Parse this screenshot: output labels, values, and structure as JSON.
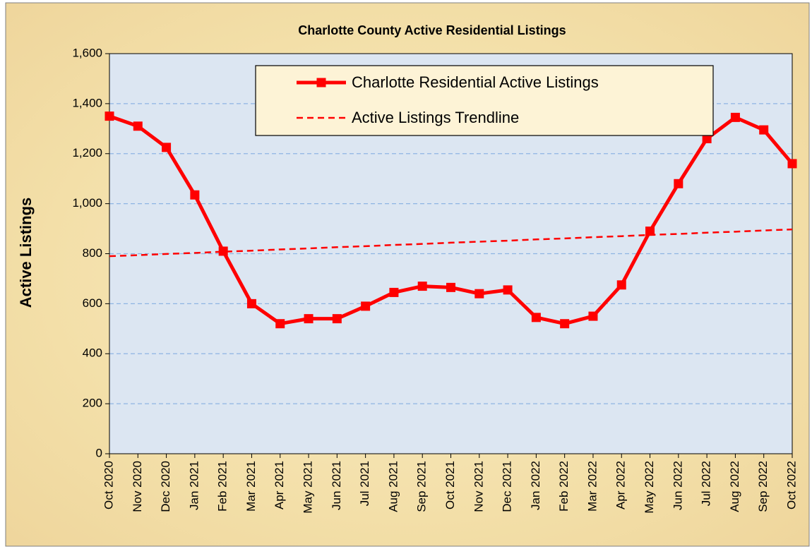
{
  "chart_data": {
    "type": "line",
    "title": "Charlotte County Active Residential Listings",
    "y_label": "Active Listings",
    "categories": [
      "Oct 2020",
      "Nov 2020",
      "Dec 2020",
      "Jan 2021",
      "Feb 2021",
      "Mar 2021",
      "Apr 2021",
      "May 2021",
      "Jun 2021",
      "Jul 2021",
      "Aug 2021",
      "Sep 2021",
      "Oct 2021",
      "Nov 2021",
      "Dec 2021",
      "Jan 2022",
      "Feb 2022",
      "Mar 2022",
      "Apr 2022",
      "May 2022",
      "Jun 2022",
      "Jul 2022",
      "Aug 2022",
      "Sep 2022",
      "Oct 2022"
    ],
    "series": [
      {
        "name": "Charlotte Residential Active Listings",
        "color": "#ff0000",
        "style": "solid-markers",
        "values": [
          1350,
          1310,
          1225,
          1035,
          810,
          600,
          520,
          540,
          540,
          590,
          645,
          670,
          665,
          640,
          655,
          545,
          520,
          550,
          675,
          890,
          1080,
          1260,
          1345,
          1295,
          1160
        ]
      },
      {
        "name": "Active Listings Trendline",
        "color": "#ff0000",
        "style": "dashed",
        "values": [
          790,
          794,
          799,
          803,
          808,
          812,
          817,
          821,
          826,
          830,
          835,
          839,
          844,
          848,
          852,
          857,
          861,
          866,
          870,
          875,
          879,
          884,
          888,
          893,
          897
        ]
      }
    ],
    "ylim": [
      0,
      1600
    ],
    "yticks": [
      0,
      200,
      400,
      600,
      800,
      {
        "value": 1000,
        "label": "1,000"
      },
      {
        "value": 1200,
        "label": "1,200"
      },
      {
        "value": 1400,
        "label": "1,400"
      },
      {
        "value": 1600,
        "label": "1,600"
      }
    ],
    "grid": true,
    "legend": "top"
  }
}
